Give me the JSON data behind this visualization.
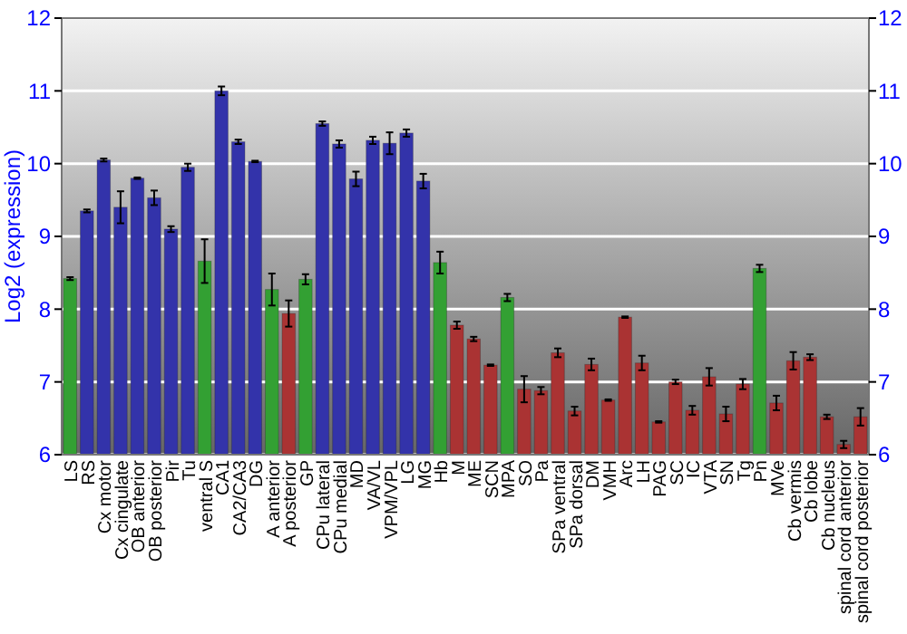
{
  "chart_data": {
    "type": "bar",
    "ylabel": "Log2 (expression)",
    "categories": [
      "LS",
      "RS",
      "Cx motor",
      "Cx cingulate",
      "OB anterior",
      "OB posterior",
      "Pir",
      "Tu",
      "ventral S",
      "CA1",
      "CA2/CA3",
      "DG",
      "A anterior",
      "A posterior",
      "GP",
      "CPu lateral",
      "CPu medial",
      "MD",
      "VA/VL",
      "VPM/VPL",
      "LG",
      "MG",
      "Hb",
      "M",
      "ME",
      "SCN",
      "MPA",
      "SO",
      "Pa",
      "SPa ventral",
      "SPa dorsal",
      "DM",
      "VMH",
      "Arc",
      "LH",
      "PAG",
      "SC",
      "IC",
      "VTA",
      "SN",
      "Tg",
      "Pn",
      "MVe",
      "Cb vermis",
      "Cb lobe",
      "Cb nucleus",
      "spinal cord anterior",
      "spinal cord posterior"
    ],
    "values": [
      8.42,
      9.35,
      10.05,
      9.4,
      9.8,
      9.53,
      9.1,
      9.95,
      8.66,
      11.0,
      10.3,
      10.03,
      8.27,
      7.94,
      8.41,
      10.55,
      10.27,
      9.79,
      10.32,
      10.28,
      10.42,
      9.76,
      8.64,
      7.78,
      7.59,
      7.23,
      8.16,
      6.9,
      6.88,
      7.4,
      6.6,
      7.24,
      6.75,
      7.89,
      7.26,
      6.45,
      7.0,
      6.61,
      7.07,
      6.56,
      6.97,
      8.56,
      6.71,
      7.29,
      7.34,
      6.52,
      6.14,
      6.52
    ],
    "errors": [
      0.02,
      0.02,
      0.02,
      0.22,
      0.01,
      0.1,
      0.04,
      0.05,
      0.3,
      0.06,
      0.03,
      0.01,
      0.22,
      0.18,
      0.07,
      0.03,
      0.05,
      0.1,
      0.05,
      0.15,
      0.05,
      0.1,
      0.15,
      0.05,
      0.03,
      0.01,
      0.05,
      0.18,
      0.05,
      0.06,
      0.06,
      0.08,
      0.01,
      0.01,
      0.1,
      0.01,
      0.03,
      0.06,
      0.12,
      0.1,
      0.07,
      0.05,
      0.1,
      0.12,
      0.04,
      0.03,
      0.05,
      0.12
    ],
    "colors": [
      "#33a033",
      "#3333aa",
      "#3333aa",
      "#3333aa",
      "#3333aa",
      "#3333aa",
      "#3333aa",
      "#3333aa",
      "#33a033",
      "#3333aa",
      "#3333aa",
      "#3333aa",
      "#33a033",
      "#aa3333",
      "#33a033",
      "#3333aa",
      "#3333aa",
      "#3333aa",
      "#3333aa",
      "#3333aa",
      "#3333aa",
      "#3333aa",
      "#33a033",
      "#aa3333",
      "#aa3333",
      "#aa3333",
      "#33a033",
      "#aa3333",
      "#aa3333",
      "#aa3333",
      "#aa3333",
      "#aa3333",
      "#aa3333",
      "#aa3333",
      "#aa3333",
      "#aa3333",
      "#aa3333",
      "#aa3333",
      "#aa3333",
      "#aa3333",
      "#aa3333",
      "#33a033",
      "#aa3333",
      "#aa3333",
      "#aa3333",
      "#aa3333",
      "#aa3333",
      "#aa3333"
    ],
    "ylim": [
      6,
      12
    ],
    "yticks": [
      6,
      7,
      8,
      9,
      10,
      11,
      12
    ],
    "y2lim": [
      6,
      12
    ],
    "y2ticks": [
      6,
      7,
      8,
      9,
      10,
      11,
      12
    ],
    "grid": "y"
  }
}
